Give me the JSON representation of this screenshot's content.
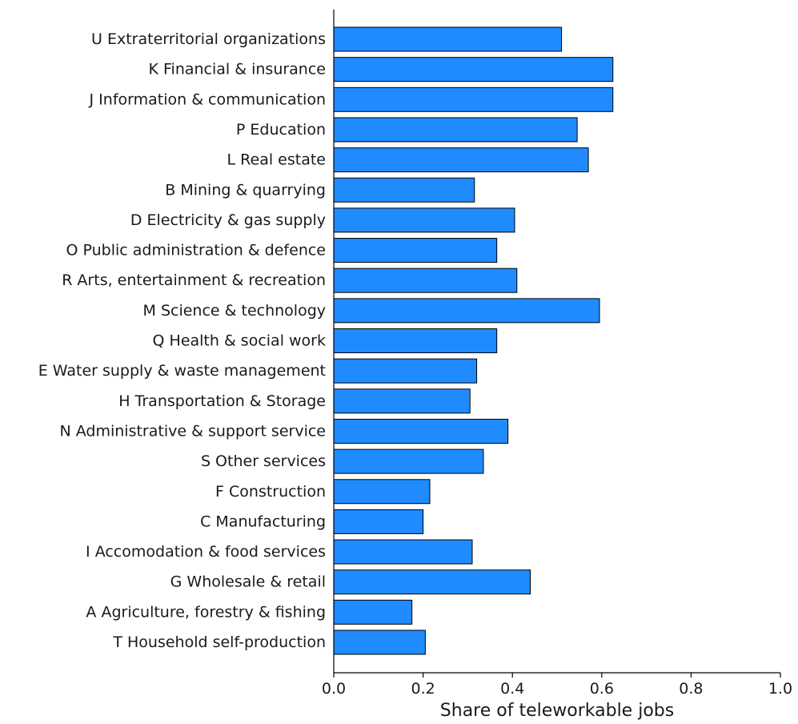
{
  "chart_data": {
    "type": "bar",
    "orientation": "horizontal",
    "title": "",
    "xlabel": "Share of teleworkable jobs",
    "ylabel": "",
    "xlim": [
      0.0,
      1.0
    ],
    "xticks": [
      0.0,
      0.2,
      0.4,
      0.6,
      0.8,
      1.0
    ],
    "xtick_labels": [
      "0.0",
      "0.2",
      "0.4",
      "0.6",
      "0.8",
      "1.0"
    ],
    "grid": false,
    "bar_color": "#1f8bff",
    "bar_edge_color": "#000000",
    "categories": [
      "U Extraterritorial organizations",
      "K Financial & insurance",
      "J Information & communication",
      "P Education",
      "L Real estate",
      "B Mining & quarrying",
      "D Electricity & gas supply",
      "O Public administration & defence",
      "R Arts, entertainment & recreation",
      "M Science & technology",
      "Q Health & social work",
      "E Water supply & waste management",
      "H Transportation & Storage",
      "N Administrative & support service",
      "S Other services",
      "F Construction",
      "C Manufacturing",
      "I Accomodation & food services",
      "G Wholesale & retail",
      "A Agriculture, forestry & fishing",
      "T Household self-production"
    ],
    "values": [
      0.51,
      0.625,
      0.625,
      0.545,
      0.57,
      0.315,
      0.405,
      0.365,
      0.41,
      0.595,
      0.365,
      0.32,
      0.305,
      0.39,
      0.335,
      0.215,
      0.2,
      0.31,
      0.44,
      0.175,
      0.205
    ]
  }
}
